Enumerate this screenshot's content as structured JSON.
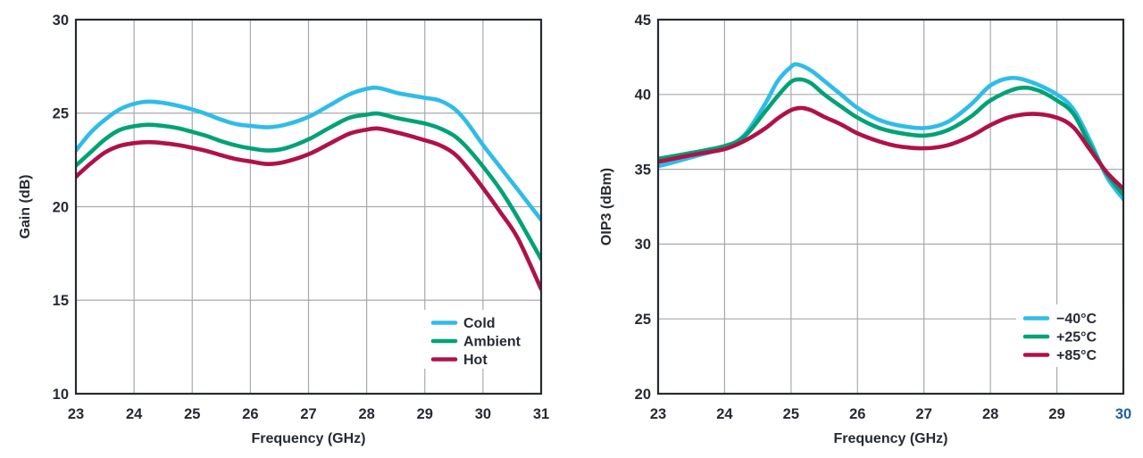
{
  "style": {
    "background": "#FFFFFF",
    "axis_color": "#262A33",
    "grid_color": "#A7A9AC",
    "tick_highlight_color": "#20609C",
    "legend_background": "#FFFFFF"
  },
  "chart_data": [
    {
      "type": "line",
      "id": "gain",
      "x_axis": {
        "label": "Frequency (GHz)",
        "min": 23,
        "max": 31,
        "ticks": [
          23,
          24,
          25,
          26,
          27,
          28,
          29,
          30,
          31
        ]
      },
      "y_axis": {
        "label": "Gain (dB)",
        "min": 10,
        "max": 30,
        "ticks": [
          10,
          15,
          20,
          25,
          30
        ]
      },
      "grid": true,
      "legend_position": "bottom-right-inside",
      "legend": [
        {
          "label": "Cold",
          "color": "#2FBCE9"
        },
        {
          "label": "Ambient",
          "color": "#00A276"
        },
        {
          "label": "Hot",
          "color": "#B01149"
        }
      ],
      "series": [
        {
          "name": "Cold",
          "color": "#2FBCE9",
          "points": [
            [
              23,
              23.0
            ],
            [
              23.25,
              23.95
            ],
            [
              23.5,
              24.65
            ],
            [
              23.75,
              25.2
            ],
            [
              24,
              25.5
            ],
            [
              24.25,
              25.62
            ],
            [
              24.5,
              25.55
            ],
            [
              24.75,
              25.4
            ],
            [
              25,
              25.2
            ],
            [
              25.25,
              24.95
            ],
            [
              25.5,
              24.65
            ],
            [
              25.75,
              24.42
            ],
            [
              26,
              24.32
            ],
            [
              26.3,
              24.25
            ],
            [
              26.6,
              24.38
            ],
            [
              27,
              24.8
            ],
            [
              27.35,
              25.4
            ],
            [
              27.7,
              26.0
            ],
            [
              28,
              26.3
            ],
            [
              28.2,
              26.35
            ],
            [
              28.5,
              26.1
            ],
            [
              28.75,
              25.95
            ],
            [
              29,
              25.82
            ],
            [
              29.25,
              25.68
            ],
            [
              29.5,
              25.25
            ],
            [
              29.7,
              24.6
            ],
            [
              30,
              23.3
            ],
            [
              30.3,
              22.1
            ],
            [
              30.6,
              20.9
            ],
            [
              31,
              19.3
            ]
          ]
        },
        {
          "name": "Ambient",
          "color": "#00A276",
          "points": [
            [
              23,
              22.2
            ],
            [
              23.25,
              22.9
            ],
            [
              23.5,
              23.6
            ],
            [
              23.75,
              24.1
            ],
            [
              24,
              24.3
            ],
            [
              24.25,
              24.38
            ],
            [
              24.5,
              24.32
            ],
            [
              24.75,
              24.2
            ],
            [
              25,
              24.0
            ],
            [
              25.25,
              23.78
            ],
            [
              25.5,
              23.5
            ],
            [
              25.75,
              23.28
            ],
            [
              26,
              23.12
            ],
            [
              26.3,
              23.0
            ],
            [
              26.6,
              23.12
            ],
            [
              27,
              23.6
            ],
            [
              27.35,
              24.2
            ],
            [
              27.7,
              24.75
            ],
            [
              28,
              24.92
            ],
            [
              28.2,
              24.98
            ],
            [
              28.5,
              24.75
            ],
            [
              28.75,
              24.6
            ],
            [
              29,
              24.45
            ],
            [
              29.25,
              24.2
            ],
            [
              29.5,
              23.8
            ],
            [
              29.7,
              23.25
            ],
            [
              30,
              22.15
            ],
            [
              30.3,
              20.9
            ],
            [
              30.6,
              19.4
            ],
            [
              31,
              17.2
            ]
          ]
        },
        {
          "name": "Hot",
          "color": "#B01149",
          "points": [
            [
              23,
              21.6
            ],
            [
              23.25,
              22.3
            ],
            [
              23.5,
              22.9
            ],
            [
              23.75,
              23.25
            ],
            [
              24,
              23.4
            ],
            [
              24.25,
              23.45
            ],
            [
              24.5,
              23.4
            ],
            [
              24.75,
              23.3
            ],
            [
              25,
              23.15
            ],
            [
              25.25,
              22.98
            ],
            [
              25.5,
              22.75
            ],
            [
              25.75,
              22.55
            ],
            [
              26,
              22.42
            ],
            [
              26.3,
              22.28
            ],
            [
              26.6,
              22.4
            ],
            [
              27,
              22.8
            ],
            [
              27.35,
              23.35
            ],
            [
              27.7,
              23.9
            ],
            [
              28,
              24.12
            ],
            [
              28.2,
              24.18
            ],
            [
              28.5,
              23.98
            ],
            [
              28.75,
              23.78
            ],
            [
              29,
              23.55
            ],
            [
              29.25,
              23.3
            ],
            [
              29.5,
              22.85
            ],
            [
              29.7,
              22.2
            ],
            [
              30,
              21.0
            ],
            [
              30.3,
              19.7
            ],
            [
              30.6,
              18.3
            ],
            [
              31,
              15.6
            ]
          ]
        }
      ]
    },
    {
      "type": "line",
      "id": "oip3",
      "x_axis": {
        "label": "Frequency (GHz)",
        "min": 23,
        "max": 30,
        "ticks": [
          23,
          24,
          25,
          26,
          27,
          28,
          29,
          30
        ],
        "last_tick_color": "#20609C"
      },
      "y_axis": {
        "label": "OIP3 (dBm)",
        "min": 20,
        "max": 45,
        "ticks": [
          20,
          25,
          30,
          35,
          40,
          45
        ]
      },
      "grid": true,
      "legend_position": "bottom-right-inside",
      "legend": [
        {
          "label": "−40°C",
          "color": "#2FBCE9"
        },
        {
          "label": "+25°C",
          "color": "#00A276"
        },
        {
          "label": "+85°C",
          "color": "#B01149"
        }
      ],
      "series": [
        {
          "name": "−40°C",
          "color": "#2FBCE9",
          "points": [
            [
              23,
              35.2
            ],
            [
              23.5,
              35.8
            ],
            [
              24,
              36.45
            ],
            [
              24.3,
              37.3
            ],
            [
              24.6,
              39.3
            ],
            [
              24.8,
              40.9
            ],
            [
              25,
              41.85
            ],
            [
              25.1,
              42.0
            ],
            [
              25.3,
              41.6
            ],
            [
              25.5,
              40.9
            ],
            [
              25.75,
              40.0
            ],
            [
              26,
              39.1
            ],
            [
              26.3,
              38.35
            ],
            [
              26.6,
              37.95
            ],
            [
              27,
              37.75
            ],
            [
              27.35,
              38.15
            ],
            [
              27.7,
              39.3
            ],
            [
              28,
              40.6
            ],
            [
              28.3,
              41.1
            ],
            [
              28.6,
              40.85
            ],
            [
              29,
              40.0
            ],
            [
              29.25,
              39.0
            ],
            [
              29.5,
              36.9
            ],
            [
              29.75,
              34.5
            ],
            [
              30,
              33.0
            ]
          ]
        },
        {
          "name": "+25°C",
          "color": "#00A276",
          "points": [
            [
              23,
              35.7
            ],
            [
              23.5,
              36.1
            ],
            [
              24,
              36.55
            ],
            [
              24.3,
              37.2
            ],
            [
              24.6,
              38.8
            ],
            [
              24.8,
              39.9
            ],
            [
              25,
              40.85
            ],
            [
              25.15,
              41.0
            ],
            [
              25.3,
              40.75
            ],
            [
              25.5,
              40.0
            ],
            [
              25.75,
              39.2
            ],
            [
              26,
              38.45
            ],
            [
              26.3,
              37.8
            ],
            [
              26.6,
              37.45
            ],
            [
              27,
              37.25
            ],
            [
              27.35,
              37.6
            ],
            [
              27.7,
              38.5
            ],
            [
              28,
              39.6
            ],
            [
              28.4,
              40.4
            ],
            [
              28.7,
              40.3
            ],
            [
              29,
              39.6
            ],
            [
              29.25,
              38.7
            ],
            [
              29.5,
              36.6
            ],
            [
              29.75,
              34.7
            ],
            [
              30,
              33.3
            ]
          ]
        },
        {
          "name": "+85°C",
          "color": "#B01149",
          "points": [
            [
              23,
              35.5
            ],
            [
              23.5,
              35.95
            ],
            [
              24,
              36.35
            ],
            [
              24.3,
              36.9
            ],
            [
              24.6,
              37.7
            ],
            [
              24.8,
              38.4
            ],
            [
              25,
              38.95
            ],
            [
              25.15,
              39.1
            ],
            [
              25.3,
              38.95
            ],
            [
              25.5,
              38.5
            ],
            [
              25.75,
              38.0
            ],
            [
              26,
              37.4
            ],
            [
              26.3,
              36.9
            ],
            [
              26.6,
              36.55
            ],
            [
              27,
              36.4
            ],
            [
              27.35,
              36.6
            ],
            [
              27.7,
              37.2
            ],
            [
              28,
              37.95
            ],
            [
              28.3,
              38.5
            ],
            [
              28.65,
              38.7
            ],
            [
              29,
              38.45
            ],
            [
              29.25,
              37.8
            ],
            [
              29.5,
              36.3
            ],
            [
              29.75,
              34.8
            ],
            [
              30,
              33.7
            ]
          ]
        }
      ]
    }
  ]
}
